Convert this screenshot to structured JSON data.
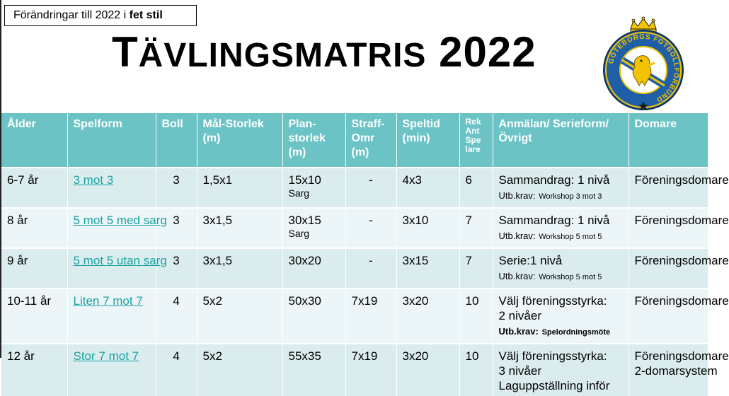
{
  "note": {
    "prefix": "Förändringar till 2022 i",
    "bold": "fet stil"
  },
  "title": {
    "t": "T",
    "rest": "ÄVLINGSMATRIS",
    "year": "2022"
  },
  "logo": {
    "top_text": "GÖTEBORGS FOTBOLLFÖRBUND",
    "colors": {
      "blue": "#1f5fa8",
      "yellow": "#f2c300",
      "white": "#ffffff"
    }
  },
  "colors": {
    "header_bg": "#6cc3c5",
    "row_odd": "#dbecef",
    "row_even": "#ecf5f7",
    "link": "#1aa3a0"
  },
  "headers": {
    "alder": "Ålder",
    "spelform": "Spelform",
    "boll": "Boll",
    "mal": "Mål-Storlek (m)",
    "plan": "Plan-storlek (m)",
    "straff": "Straff-Omr (m)",
    "speltid": "Speltid (min)",
    "rek": "Rek Ant Spe lare",
    "anmalan": "Anmälan/ Serieform/ Övrigt",
    "domare": "Domare"
  },
  "rows": [
    {
      "alder": "6-7 år",
      "spelform": "3 mot 3",
      "boll": "3",
      "mal": "1,5x1",
      "plan": "15x10",
      "plan_sub": "Sarg",
      "straff": "-",
      "speltid": "4x3",
      "rek": "6",
      "anm_line1": "Sammandrag: 1 nivå",
      "anm_lbl": "Utb.krav:",
      "anm_detail": "Workshop 3 mot 3",
      "domare": "Föreningsdomare"
    },
    {
      "alder": "8 år",
      "spelform": "5 mot 5 med sarg",
      "boll": "3",
      "mal": "3x1,5",
      "plan": "30x15",
      "plan_sub": "Sarg",
      "straff": "-",
      "speltid": "3x10",
      "rek": "7",
      "anm_line1": "Sammandrag: 1 nivå",
      "anm_lbl": "Utb.krav:",
      "anm_detail": "Workshop 5 mot 5",
      "domare": "Föreningsdomare"
    },
    {
      "alder": "9 år",
      "spelform": "5 mot 5 utan sarg",
      "boll": "3",
      "mal": "3x1,5",
      "plan": "30x20",
      "plan_sub": "",
      "straff": "-",
      "speltid": "3x15",
      "rek": "7",
      "anm_line1": "Serie:1 nivå",
      "anm_lbl": "Utb.krav:",
      "anm_detail": "Workshop 5 mot 5",
      "domare": "Föreningsdomare"
    },
    {
      "alder": "10-11 år",
      "spelform": "Liten 7 mot 7",
      "boll": "4",
      "mal": "5x2",
      "plan": "50x30",
      "plan_sub": "",
      "straff": "7x19",
      "speltid": "3x20",
      "rek": "10",
      "anm_line1": "Välj föreningsstyrka:",
      "anm_line2": "2 nivåer",
      "anm_lbl_bold": "Utb.krav:",
      "anm_detail_bold": "Spelordningsmöte",
      "domare": "Föreningsdomare"
    },
    {
      "alder": "12 år",
      "spelform": "Stor 7 mot 7",
      "boll": "4",
      "mal": "5x2",
      "plan": "55x35",
      "plan_sub": "",
      "straff": "7x19",
      "speltid": "3x20",
      "rek": "10",
      "anm_line1": "Välj föreningsstyrka:",
      "anm_line2": "3 nivåer",
      "anm_line3": "Laguppställning inför",
      "domare": "Föreningsdomare",
      "domare2": "2-domarsystem"
    }
  ]
}
